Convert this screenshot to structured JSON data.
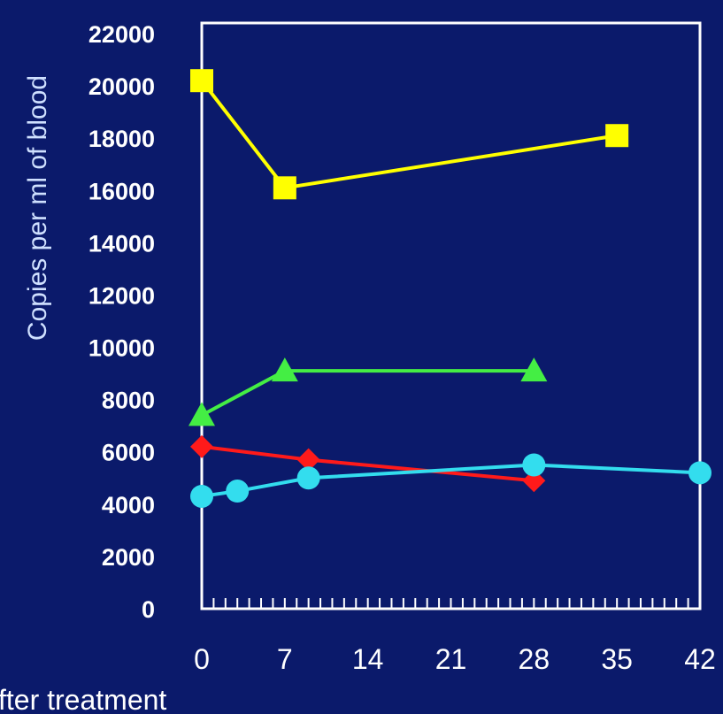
{
  "chart_data": {
    "type": "line",
    "xlabel": "fter treatment",
    "ylabel": "Copies per ml of blood",
    "xlim": [
      0,
      42
    ],
    "ylim": [
      0,
      22000
    ],
    "x_ticks": [
      "0",
      "7",
      "14",
      "21",
      "28",
      "35",
      "42"
    ],
    "y_ticks": [
      "0",
      "2000",
      "4000",
      "6000",
      "8000",
      "10000",
      "12000",
      "14000",
      "16000",
      "18000",
      "20000",
      "22000"
    ],
    "grid": false,
    "series": [
      {
        "color": "#ffff00",
        "marker": "square",
        "x": [
          0,
          7,
          35
        ],
        "y": [
          20200,
          16100,
          18100
        ]
      },
      {
        "color": "#44ee44",
        "marker": "triangle",
        "x": [
          0,
          7,
          28
        ],
        "y": [
          7400,
          9100,
          9100
        ]
      },
      {
        "color": "#ff1a1a",
        "marker": "diamond",
        "x": [
          0,
          9,
          28
        ],
        "y": [
          6200,
          5700,
          4900
        ]
      },
      {
        "color": "#33ddee",
        "marker": "circle",
        "x": [
          0,
          3,
          9,
          28,
          42
        ],
        "y": [
          4300,
          4500,
          5000,
          5500,
          5200
        ]
      }
    ]
  }
}
